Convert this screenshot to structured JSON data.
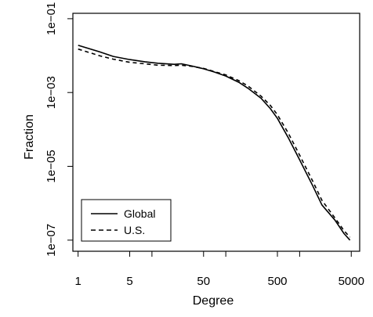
{
  "chart_data": {
    "type": "line",
    "xlabel": "Degree",
    "ylabel": "Fraction",
    "x_scale": "log",
    "y_scale": "log",
    "xlim": [
      0.85,
      6500
    ],
    "ylim": [
      5e-08,
      0.14
    ],
    "x_ticks": [
      {
        "value": 1,
        "label": "1"
      },
      {
        "value": 5,
        "label": "5"
      },
      {
        "value": 50,
        "label": "50"
      },
      {
        "value": 500,
        "label": "500"
      },
      {
        "value": 5000,
        "label": "5000"
      }
    ],
    "x_minor_ticks": [
      10,
      100,
      1000
    ],
    "y_ticks": [
      {
        "value": 0.1,
        "label": "1e−01"
      },
      {
        "value": 0.001,
        "label": "1e−03"
      },
      {
        "value": 1e-05,
        "label": "1e−05"
      },
      {
        "value": 1e-07,
        "label": "1e−07"
      }
    ],
    "legend_position": "bottom-left",
    "grid": false,
    "series": [
      {
        "name": "Global",
        "style": "solid",
        "x": [
          1,
          2,
          3,
          5,
          8,
          12,
          20,
          25,
          35,
          50,
          70,
          100,
          150,
          200,
          300,
          400,
          500,
          700,
          1000,
          1500,
          2000,
          3000,
          4000,
          4800
        ],
        "y": [
          0.019,
          0.0125,
          0.0095,
          0.0078,
          0.0068,
          0.0062,
          0.0058,
          0.006,
          0.0052,
          0.0044,
          0.0036,
          0.0028,
          0.0019,
          0.0013,
          0.0007,
          0.00037,
          0.0002,
          6e-05,
          1.5e-05,
          3e-06,
          9e-07,
          3.5e-07,
          1.5e-07,
          1e-07
        ]
      },
      {
        "name": "U.S.",
        "style": "dashed",
        "x": [
          1,
          2,
          3,
          5,
          8,
          12,
          20,
          25,
          35,
          50,
          70,
          100,
          150,
          200,
          300,
          400,
          500,
          700,
          1000,
          1500,
          2000,
          3000,
          4000,
          4800
        ],
        "y": [
          0.015,
          0.0098,
          0.008,
          0.0066,
          0.006,
          0.0055,
          0.0054,
          0.0055,
          0.0051,
          0.0045,
          0.0037,
          0.003,
          0.0021,
          0.0015,
          0.0008,
          0.00045,
          0.00025,
          8e-05,
          2e-05,
          4e-06,
          1.2e-06,
          4e-07,
          1.8e-07,
          1.2e-07
        ]
      }
    ]
  }
}
